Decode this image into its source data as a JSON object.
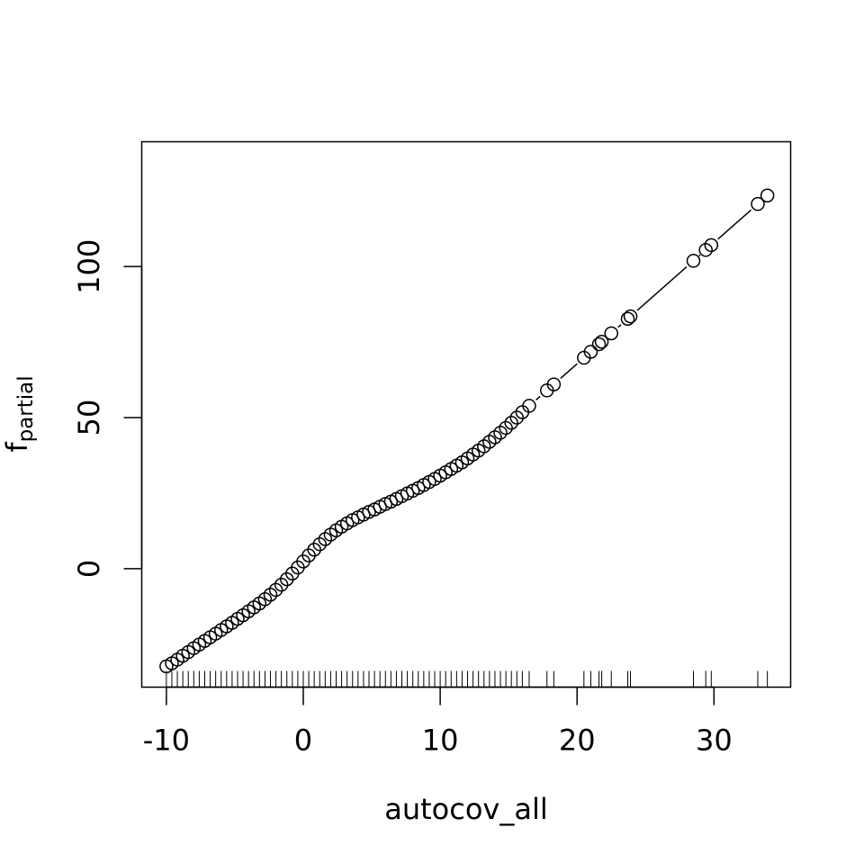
{
  "chart_data": {
    "type": "scatter",
    "title": "",
    "xlabel": "autocov_all",
    "ylabel": {
      "main": "f",
      "subscript": "partial"
    },
    "xlim": [
      -11.8,
      35.6
    ],
    "ylim": [
      -39.2,
      141.3
    ],
    "x_ticks": [
      -10,
      0,
      10,
      20,
      30
    ],
    "y_ticks": [
      0,
      50,
      100
    ],
    "grid": false,
    "legend": "none",
    "line_color": "#000000",
    "point_style": "open-circle",
    "rug": true,
    "series": [
      {
        "values": [
          [
            -10.0,
            -32.3
          ],
          [
            -9.6,
            -31.3
          ],
          [
            -9.2,
            -30.1
          ],
          [
            -8.8,
            -28.8
          ],
          [
            -8.4,
            -27.6
          ],
          [
            -8.0,
            -26.3
          ],
          [
            -7.6,
            -25.1
          ],
          [
            -7.2,
            -23.9
          ],
          [
            -6.8,
            -22.7
          ],
          [
            -6.4,
            -21.5
          ],
          [
            -6.0,
            -20.3
          ],
          [
            -5.6,
            -19.1
          ],
          [
            -5.2,
            -17.9
          ],
          [
            -4.8,
            -16.6
          ],
          [
            -4.4,
            -15.4
          ],
          [
            -4.0,
            -14.1
          ],
          [
            -3.6,
            -12.8
          ],
          [
            -3.2,
            -11.5
          ],
          [
            -2.8,
            -10.1
          ],
          [
            -2.4,
            -8.6
          ],
          [
            -2.0,
            -7.0
          ],
          [
            -1.6,
            -5.3
          ],
          [
            -1.2,
            -3.5
          ],
          [
            -0.8,
            -1.6
          ],
          [
            -0.4,
            0.4
          ],
          [
            0.0,
            2.4
          ],
          [
            0.4,
            4.4
          ],
          [
            0.8,
            6.3
          ],
          [
            1.2,
            8.1
          ],
          [
            1.6,
            9.8
          ],
          [
            2.0,
            11.3
          ],
          [
            2.4,
            12.7
          ],
          [
            2.8,
            13.9
          ],
          [
            3.2,
            15.0
          ],
          [
            3.6,
            16.1
          ],
          [
            4.0,
            17.0
          ],
          [
            4.4,
            17.9
          ],
          [
            4.8,
            18.8
          ],
          [
            5.2,
            19.6
          ],
          [
            5.6,
            20.5
          ],
          [
            6.0,
            21.4
          ],
          [
            6.4,
            22.2
          ],
          [
            6.8,
            23.1
          ],
          [
            7.2,
            24.0
          ],
          [
            7.6,
            24.9
          ],
          [
            8.0,
            25.8
          ],
          [
            8.4,
            26.7
          ],
          [
            8.8,
            27.7
          ],
          [
            9.2,
            28.7
          ],
          [
            9.6,
            29.7
          ],
          [
            10.0,
            30.8
          ],
          [
            10.4,
            31.9
          ],
          [
            10.8,
            33.0
          ],
          [
            11.2,
            34.1
          ],
          [
            11.6,
            35.2
          ],
          [
            12.0,
            36.5
          ],
          [
            12.4,
            37.8
          ],
          [
            12.8,
            39.1
          ],
          [
            13.2,
            40.5
          ],
          [
            13.6,
            42.0
          ],
          [
            14.0,
            43.5
          ],
          [
            14.4,
            45.0
          ],
          [
            14.8,
            46.6
          ],
          [
            15.2,
            48.3
          ],
          [
            15.6,
            50.0
          ],
          [
            16.0,
            51.8
          ],
          [
            16.5,
            53.9
          ],
          [
            17.8,
            59.0
          ],
          [
            18.3,
            61.0
          ],
          [
            20.5,
            69.8
          ],
          [
            21.0,
            71.8
          ],
          [
            21.6,
            74.3
          ],
          [
            21.8,
            75.1
          ],
          [
            22.5,
            77.9
          ],
          [
            23.7,
            82.7
          ],
          [
            23.9,
            83.5
          ],
          [
            28.5,
            101.9
          ],
          [
            29.4,
            105.5
          ],
          [
            29.8,
            107.1
          ],
          [
            33.2,
            120.7
          ],
          [
            33.9,
            123.5
          ]
        ]
      }
    ]
  }
}
